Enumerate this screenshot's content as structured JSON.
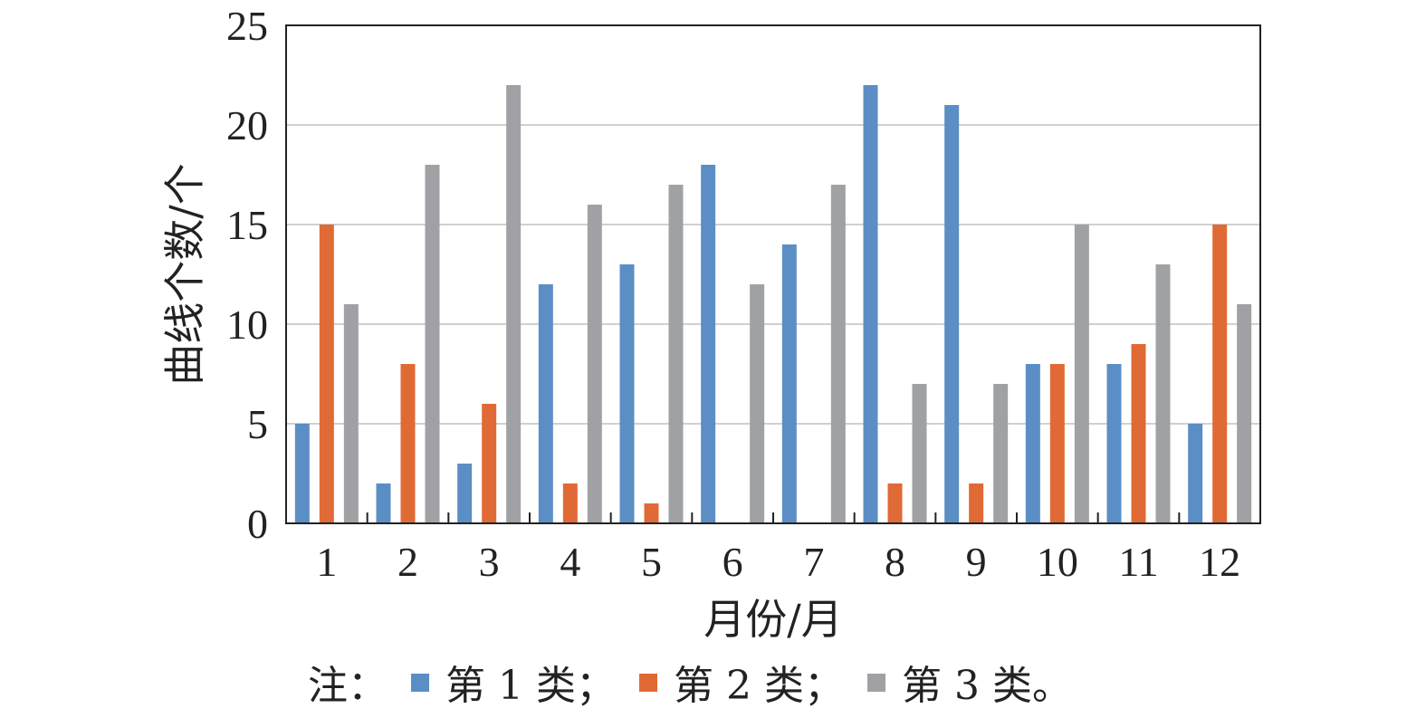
{
  "chart_data": {
    "type": "bar",
    "categories": [
      "1",
      "2",
      "3",
      "4",
      "5",
      "6",
      "7",
      "8",
      "9",
      "10",
      "11",
      "12"
    ],
    "series": [
      {
        "values": [
          5,
          2,
          3,
          12,
          13,
          18,
          14,
          22,
          21,
          8,
          8,
          5
        ],
        "color": "#5b8ec5"
      },
      {
        "values": [
          15,
          8,
          6,
          2,
          1,
          0,
          0,
          2,
          2,
          8,
          9,
          15
        ],
        "color": "#e06a35"
      },
      {
        "values": [
          11,
          18,
          22,
          16,
          17,
          12,
          17,
          7,
          7,
          15,
          13,
          11
        ],
        "color": "#a0a1a4"
      }
    ],
    "xlabel": "月份/月",
    "ylabel": "曲线个数/个",
    "ylim": [
      0,
      25
    ],
    "yticks": [
      "0",
      "5",
      "10",
      "15",
      "20",
      "25"
    ],
    "grid": true
  },
  "note": {
    "prefix": "注：",
    "items": [
      {
        "label": "第 1 类；",
        "color": "#5b8ec5"
      },
      {
        "label": "第 2 类；",
        "color": "#e06a35"
      },
      {
        "label": "第 3 类。",
        "color": "#a0a1a4"
      }
    ]
  }
}
